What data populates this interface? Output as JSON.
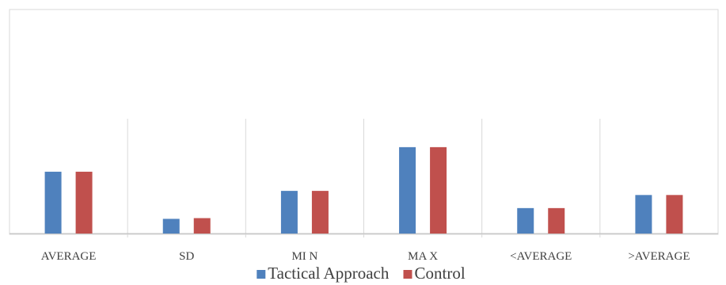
{
  "chart_data": {
    "type": "bar",
    "title": "",
    "xlabel": "",
    "ylabel": "",
    "categories": [
      "AVERAGE",
      "SD",
      "MI N",
      "MA X",
      "<AVERAGE",
      ">AVERAGE"
    ],
    "series": [
      {
        "name": "Tactical Approach",
        "values": [
          34.5,
          8.2,
          23.8,
          48.2,
          14.2,
          21.5
        ]
      },
      {
        "name": "Control",
        "values": [
          34.5,
          8.6,
          23.8,
          48.2,
          14.2,
          21.5
        ]
      }
    ],
    "ylim": [
      0,
      125
    ],
    "grid": false,
    "legend": "bottom",
    "colors": [
      "#4f81bd",
      "#c0504d"
    ]
  }
}
